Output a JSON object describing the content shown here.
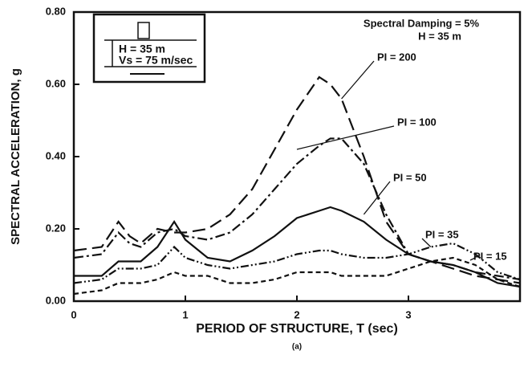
{
  "chart_data": {
    "type": "line",
    "xlabel": "PERIOD OF STRUCTURE, T (sec)",
    "ylabel": "SPECTRAL ACCELERATION, g",
    "caption": "(a)",
    "annotations": [
      "Spectral Damping = 5%",
      "H = 35 m"
    ],
    "inset_labels": [
      "H = 35 m",
      "Vs = 75 m/sec"
    ],
    "x": [
      0,
      0.25,
      0.4,
      0.5,
      0.6,
      0.75,
      0.9,
      1.0,
      1.2,
      1.4,
      1.6,
      1.8,
      2.0,
      2.2,
      2.3,
      2.4,
      2.6,
      2.8,
      3.0,
      3.2,
      3.4,
      3.6,
      3.8,
      4.0
    ],
    "xlim": [
      0,
      4
    ],
    "xticks": [
      0,
      1,
      2,
      3
    ],
    "ylim": [
      0,
      0.8
    ],
    "yticks": [
      {
        "value": 0,
        "label": "0.00"
      },
      {
        "value": 0.2,
        "label": "0.20"
      },
      {
        "value": 0.4,
        "label": "0.40"
      },
      {
        "value": 0.6,
        "label": "0.60"
      },
      {
        "value": 0.8,
        "label": "0.80"
      }
    ],
    "grid": false,
    "series": [
      {
        "name": "PI = 200",
        "color": "#111111",
        "values": [
          0.14,
          0.15,
          0.22,
          0.18,
          0.16,
          0.2,
          0.19,
          0.19,
          0.2,
          0.24,
          0.31,
          0.42,
          0.53,
          0.62,
          0.6,
          0.56,
          0.4,
          0.22,
          0.13,
          0.11,
          0.09,
          0.07,
          0.06,
          0.05
        ]
      },
      {
        "name": "PI = 100",
        "color": "#111111",
        "values": [
          0.12,
          0.13,
          0.19,
          0.16,
          0.15,
          0.19,
          0.2,
          0.18,
          0.17,
          0.19,
          0.24,
          0.31,
          0.38,
          0.43,
          0.45,
          0.45,
          0.38,
          0.24,
          0.13,
          0.11,
          0.1,
          0.08,
          0.07,
          0.06
        ]
      },
      {
        "name": "PI = 50",
        "color": "#111111",
        "values": [
          0.07,
          0.07,
          0.11,
          0.11,
          0.11,
          0.15,
          0.22,
          0.17,
          0.12,
          0.11,
          0.14,
          0.18,
          0.23,
          0.25,
          0.26,
          0.25,
          0.22,
          0.17,
          0.13,
          0.11,
          0.1,
          0.08,
          0.05,
          0.04
        ]
      },
      {
        "name": "PI = 35",
        "color": "#111111",
        "values": [
          0.05,
          0.06,
          0.09,
          0.09,
          0.09,
          0.1,
          0.15,
          0.12,
          0.1,
          0.09,
          0.1,
          0.11,
          0.13,
          0.14,
          0.14,
          0.13,
          0.12,
          0.12,
          0.13,
          0.15,
          0.16,
          0.13,
          0.08,
          0.06
        ]
      },
      {
        "name": "PI = 15",
        "color": "#111111",
        "values": [
          0.02,
          0.03,
          0.05,
          0.05,
          0.05,
          0.06,
          0.08,
          0.07,
          0.07,
          0.05,
          0.05,
          0.06,
          0.08,
          0.08,
          0.08,
          0.07,
          0.07,
          0.07,
          0.09,
          0.11,
          0.12,
          0.1,
          0.06,
          0.04
        ]
      }
    ]
  }
}
